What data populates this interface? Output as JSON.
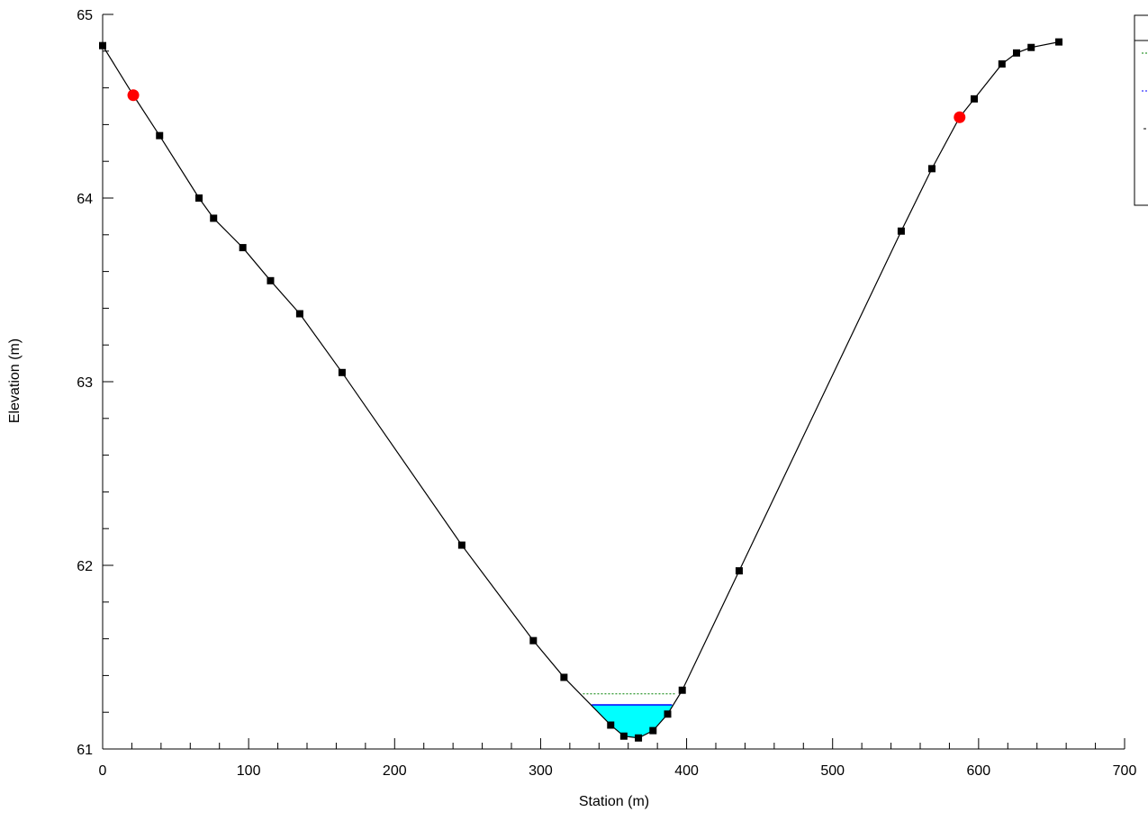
{
  "chart_data": {
    "type": "line",
    "title": "",
    "xlabel": "Station (m)",
    "ylabel": "Elevation (m)",
    "xlim": [
      0,
      700
    ],
    "ylim": [
      61,
      65
    ],
    "x_ticks": [
      "0",
      "100",
      "200",
      "300",
      "400",
      "500",
      "600",
      "700"
    ],
    "y_ticks": [
      "61",
      "62",
      "63",
      "64",
      "65"
    ],
    "legend_placement": "top-right (clipped at image edge)",
    "grid": false,
    "colors": {
      "ground": "#000000",
      "water_fill": "#00ffff",
      "water_surface": "#0000ff",
      "energy_grade": "#008000",
      "bank_station": "#ff0000"
    },
    "series": [
      {
        "key": "ground",
        "points": [
          [
            0,
            64.83
          ],
          [
            21,
            64.56
          ],
          [
            39,
            64.34
          ],
          [
            66,
            64.0
          ],
          [
            76,
            63.89
          ],
          [
            96,
            63.73
          ],
          [
            115,
            63.55
          ],
          [
            135,
            63.37
          ],
          [
            164,
            63.05
          ],
          [
            246,
            62.11
          ],
          [
            295,
            61.59
          ],
          [
            316,
            61.39
          ],
          [
            348,
            61.13
          ],
          [
            357,
            61.07
          ],
          [
            367,
            61.06
          ],
          [
            377,
            61.1
          ],
          [
            387,
            61.19
          ],
          [
            397,
            61.32
          ],
          [
            436,
            61.97
          ],
          [
            547,
            63.82
          ],
          [
            568,
            64.16
          ],
          [
            587,
            64.44
          ],
          [
            597,
            64.54
          ],
          [
            616,
            64.73
          ],
          [
            626,
            64.79
          ],
          [
            636,
            64.82
          ],
          [
            655,
            64.85
          ]
        ],
        "markers": [
          0,
          39,
          66,
          76,
          96,
          115,
          135,
          164,
          246,
          295,
          316,
          348,
          357,
          367,
          377,
          387,
          397,
          436,
          547,
          568,
          597,
          616,
          626,
          636,
          655
        ]
      },
      {
        "key": "water_surface",
        "elevation": 61.24,
        "x_range": [
          335,
          390
        ]
      },
      {
        "key": "energy_grade",
        "elevation": 61.3,
        "x_range": [
          329,
          393
        ]
      },
      {
        "key": "bank_stations",
        "points": [
          [
            21,
            64.56
          ],
          [
            587,
            64.44
          ]
        ]
      }
    ]
  }
}
